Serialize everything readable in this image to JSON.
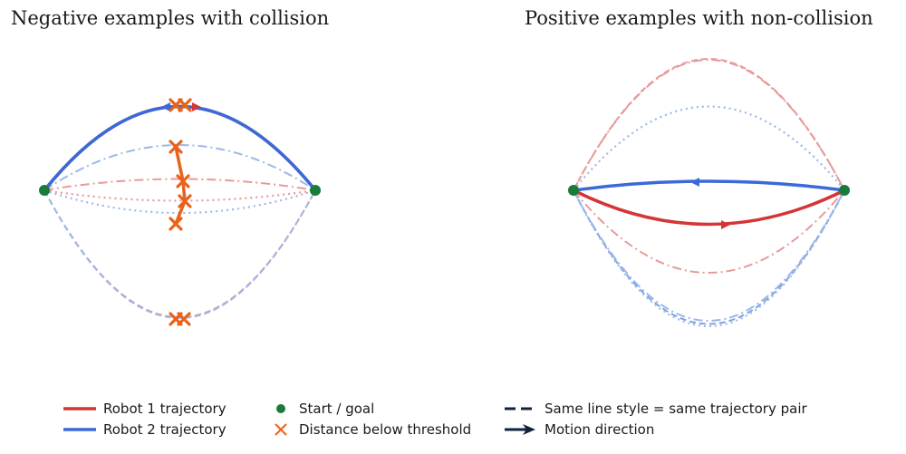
{
  "panels": {
    "left": {
      "title": "Negative examples with collision"
    },
    "right": {
      "title": "Positive examples with non-collision"
    }
  },
  "colors": {
    "robot1": "#d43535",
    "robot2": "#3a6ad9",
    "robot1_faint": "#e89a9a",
    "robot2_faint": "#9ab8ea",
    "start_goal": "#1a7a3c",
    "collision": "#e8621a",
    "direction": "#12213d"
  },
  "legend": {
    "robot1": "Robot 1 trajectory",
    "robot2": "Robot 2 trajectory",
    "start_goal": "Start / goal",
    "threshold": "Distance below threshold",
    "line_style": "Same line style = same trajectory pair",
    "motion": "Motion direction"
  }
}
